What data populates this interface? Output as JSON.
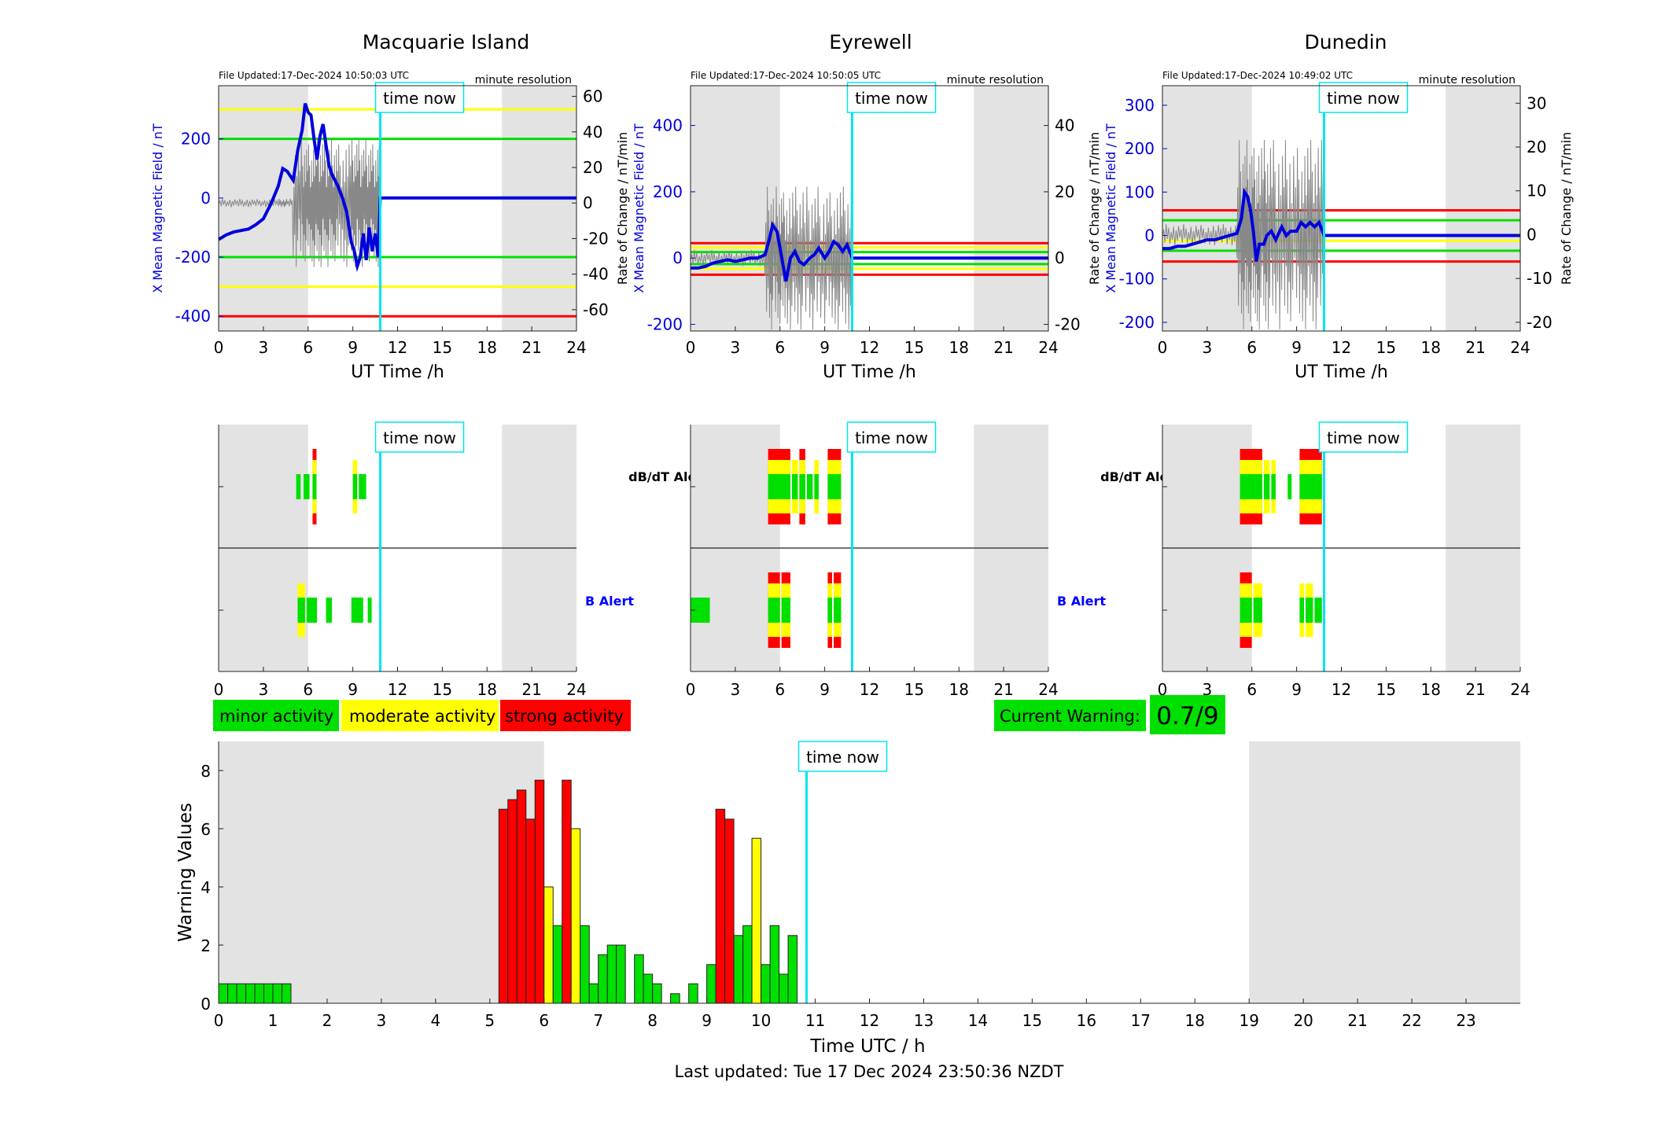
{
  "colors": {
    "minor": "#00e000",
    "moderate": "#ffff00",
    "strong": "#ff0000",
    "field": "#0000dd",
    "now": "#00e5ee",
    "shade": "#e3e3e3",
    "b_alert_label": "#0000ff"
  },
  "stations": [
    {
      "name": "Macquarie Island",
      "file_updated": "File Updated:17-Dec-2024 10:50:03 UTC",
      "resolution": "minute resolution",
      "left_ylabel": "X Mean Magnetic Field / nT",
      "right_ylabel": "Rate of Change / nT/min",
      "left_ticks": [
        "200",
        "0",
        "-200",
        "-400"
      ],
      "right_ticks": [
        "60",
        "40",
        "20",
        "0",
        "-20",
        "-40",
        "-60"
      ],
      "xlabel": "UT Time /h",
      "x_ticks": [
        "0",
        "3",
        "6",
        "9",
        "12",
        "15",
        "18",
        "21",
        "24"
      ],
      "time_now": "time now"
    },
    {
      "name": "Eyrewell",
      "file_updated": "File Updated:17-Dec-2024 10:50:05 UTC",
      "resolution": "minute resolution",
      "left_ylabel": "X Mean Magnetic Field / nT",
      "right_ylabel": "Rate of Change / nT/min",
      "left_ticks": [
        "400",
        "200",
        "0",
        "-200"
      ],
      "right_ticks": [
        "40",
        "20",
        "0",
        "-20"
      ],
      "xlabel": "UT Time /h",
      "x_ticks": [
        "0",
        "3",
        "6",
        "9",
        "12",
        "15",
        "18",
        "21",
        "24"
      ],
      "time_now": "time now"
    },
    {
      "name": "Dunedin",
      "file_updated": "File Updated:17-Dec-2024 10:49:02 UTC",
      "resolution": "minute resolution",
      "left_ylabel": "X Mean Magnetic Field / nT",
      "right_ylabel": "Rate of Change / nT/min",
      "left_ticks": [
        "300",
        "200",
        "100",
        "0",
        "-100",
        "-200"
      ],
      "right_ticks": [
        "30",
        "20",
        "10",
        "0",
        "-10",
        "-20"
      ],
      "xlabel": "UT Time /h",
      "x_ticks": [
        "0",
        "3",
        "6",
        "9",
        "12",
        "15",
        "18",
        "21",
        "24"
      ],
      "time_now": "time now"
    }
  ],
  "alerts": {
    "dbdt_label": "dB/dT Alert",
    "b_label": "B Alert",
    "time_now": "time now",
    "x_ticks": [
      "0",
      "3",
      "6",
      "9",
      "12",
      "15",
      "18",
      "21",
      "24"
    ]
  },
  "legend": {
    "minor": "minor activity",
    "moderate": "moderate activity",
    "strong": "strong activity"
  },
  "current_warning": {
    "label": "Current Warning:",
    "value": "0.7/9"
  },
  "footer": "Last updated: Tue 17 Dec 2024 23:50:36 NZDT",
  "chart_data": [
    {
      "id": "macquarie-field",
      "type": "line",
      "title": "Macquarie Island",
      "xlabel": "UT Time /h",
      "ylabel": "X Mean Magnetic Field / nT",
      "y2label": "Rate of Change / nT/min",
      "xlim": [
        0,
        24
      ],
      "ylim": [
        -450,
        380
      ],
      "y2lim": [
        -72,
        66
      ],
      "shaded_hours": [
        [
          0,
          6
        ],
        [
          19,
          24
        ]
      ],
      "time_now_h": 10.84,
      "threshold_lines": [
        {
          "level": "moderate",
          "y": 300
        },
        {
          "level": "minor",
          "y": 200
        },
        {
          "level": "minor",
          "y": -200
        },
        {
          "level": "moderate",
          "y": -300
        },
        {
          "level": "strong",
          "y": -400
        }
      ],
      "series": [
        {
          "x": [
            0,
            0.5,
            1,
            1.5,
            2,
            2.5,
            3,
            3.5,
            4,
            4.3,
            4.6,
            5,
            5.3,
            5.6,
            5.8,
            6,
            6.2,
            6.4,
            6.6,
            6.8,
            7,
            7.2,
            7.4,
            7.6,
            7.8,
            8,
            8.3,
            8.6,
            8.9,
            9.1,
            9.3,
            9.5,
            9.7,
            9.9,
            10.1,
            10.3,
            10.5,
            10.7,
            10.84,
            24
          ],
          "y": [
            -140,
            -125,
            -115,
            -110,
            -105,
            -90,
            -70,
            -20,
            40,
            100,
            90,
            60,
            160,
            230,
            320,
            290,
            280,
            200,
            130,
            210,
            250,
            180,
            110,
            80,
            60,
            40,
            0,
            -50,
            -150,
            -180,
            -230,
            -200,
            -120,
            -210,
            -100,
            -180,
            -120,
            -200,
            0,
            0
          ]
        }
      ]
    },
    {
      "id": "eyrewell-field",
      "type": "line",
      "title": "Eyrewell",
      "xlabel": "UT Time /h",
      "ylabel": "X Mean Magnetic Field / nT",
      "y2label": "Rate of Change / nT/min",
      "xlim": [
        0,
        24
      ],
      "ylim": [
        -220,
        520
      ],
      "y2lim": [
        -22,
        52
      ],
      "shaded_hours": [
        [
          0,
          6
        ],
        [
          19,
          24
        ]
      ],
      "time_now_h": 10.84,
      "threshold_lines": [
        {
          "level": "strong",
          "y": 45
        },
        {
          "level": "moderate",
          "y": 32
        },
        {
          "level": "minor",
          "y": 18
        },
        {
          "level": "minor",
          "y": -18
        },
        {
          "level": "moderate",
          "y": -32
        },
        {
          "level": "strong",
          "y": -50
        }
      ],
      "series": [
        {
          "x": [
            0,
            0.5,
            1,
            1.5,
            2,
            2.5,
            3,
            3.5,
            4,
            4.5,
            5,
            5.3,
            5.5,
            5.8,
            6,
            6.2,
            6.4,
            6.7,
            7,
            7.3,
            7.6,
            8,
            8.3,
            8.6,
            9,
            9.3,
            9.6,
            9.9,
            10.2,
            10.5,
            10.84,
            24
          ],
          "y": [
            -30,
            -30,
            -25,
            -15,
            -10,
            -5,
            -10,
            -5,
            0,
            0,
            10,
            60,
            100,
            80,
            30,
            -20,
            -70,
            0,
            20,
            -10,
            -20,
            0,
            10,
            30,
            0,
            20,
            50,
            40,
            20,
            40,
            0,
            0
          ]
        }
      ]
    },
    {
      "id": "dunedin-field",
      "type": "line",
      "title": "Dunedin",
      "xlabel": "UT Time /h",
      "ylabel": "X Mean Magnetic Field / nT",
      "y2label": "Rate of Change / nT/min",
      "xlim": [
        0,
        24
      ],
      "ylim": [
        -220,
        345
      ],
      "y2lim": [
        -22,
        34
      ],
      "shaded_hours": [
        [
          0,
          6
        ],
        [
          19,
          24
        ]
      ],
      "time_now_h": 10.84,
      "threshold_lines": [
        {
          "level": "strong",
          "y": 58
        },
        {
          "level": "minor",
          "y": 35
        },
        {
          "level": "moderate",
          "y": -12
        },
        {
          "level": "minor",
          "y": -35
        },
        {
          "level": "strong",
          "y": -60
        }
      ],
      "series": [
        {
          "x": [
            0,
            0.5,
            1,
            1.5,
            2,
            2.5,
            3,
            3.5,
            4,
            4.5,
            5,
            5.3,
            5.5,
            5.7,
            5.9,
            6.1,
            6.3,
            6.5,
            6.8,
            7,
            7.3,
            7.6,
            8,
            8.3,
            8.6,
            9,
            9.3,
            9.6,
            9.9,
            10.2,
            10.5,
            10.84,
            24
          ],
          "y": [
            -30,
            -30,
            -25,
            -25,
            -20,
            -15,
            -10,
            -10,
            -5,
            0,
            5,
            40,
            100,
            90,
            60,
            10,
            -60,
            -20,
            -20,
            0,
            10,
            -10,
            20,
            0,
            10,
            10,
            30,
            20,
            30,
            20,
            30,
            0,
            0
          ]
        }
      ]
    },
    {
      "id": "alert-timelines",
      "type": "heatmap",
      "xlim": [
        0,
        24
      ],
      "shaded_hours": [
        [
          0,
          6
        ],
        [
          19,
          24
        ]
      ],
      "time_now_h": 10.84,
      "rows": [
        "dB/dT Alert",
        "B Alert"
      ],
      "series": [
        {
          "name": "Macquarie Island",
          "dbdt": [
            {
              "x0": 5.2,
              "x1": 5.6,
              "level": 1
            },
            {
              "x0": 5.7,
              "x1": 6.2,
              "level": 1
            },
            {
              "x0": 6.3,
              "x1": 6.6,
              "level": 3
            },
            {
              "x0": 9.0,
              "x1": 9.4,
              "level": 2
            },
            {
              "x0": 9.4,
              "x1": 10.0,
              "level": 1
            }
          ],
          "b": [
            {
              "x0": 5.3,
              "x1": 5.9,
              "level": 2
            },
            {
              "x0": 5.9,
              "x1": 6.7,
              "level": 1
            },
            {
              "x0": 7.2,
              "x1": 7.7,
              "level": 1
            },
            {
              "x0": 8.9,
              "x1": 9.8,
              "level": 1
            },
            {
              "x0": 10.0,
              "x1": 10.3,
              "level": 1
            }
          ]
        },
        {
          "name": "Eyrewell",
          "dbdt": [
            {
              "x0": 5.2,
              "x1": 6.8,
              "level": 3
            },
            {
              "x0": 6.8,
              "x1": 7.3,
              "level": 2
            },
            {
              "x0": 7.3,
              "x1": 7.8,
              "level": 3
            },
            {
              "x0": 7.8,
              "x1": 8.3,
              "level": 1
            },
            {
              "x0": 8.3,
              "x1": 8.7,
              "level": 2
            },
            {
              "x0": 9.2,
              "x1": 10.2,
              "level": 3
            }
          ],
          "b": [
            {
              "x0": 0,
              "x1": 1.4,
              "level": 1
            },
            {
              "x0": 5.2,
              "x1": 6.1,
              "level": 3
            },
            {
              "x0": 6.1,
              "x1": 6.8,
              "level": 3
            },
            {
              "x0": 9.2,
              "x1": 9.6,
              "level": 3
            },
            {
              "x0": 9.6,
              "x1": 10.2,
              "level": 3
            }
          ]
        },
        {
          "name": "Dunedin",
          "dbdt": [
            {
              "x0": 5.2,
              "x1": 6.8,
              "level": 3
            },
            {
              "x0": 6.8,
              "x1": 7.3,
              "level": 2
            },
            {
              "x0": 7.3,
              "x1": 7.7,
              "level": 2
            },
            {
              "x0": 8.4,
              "x1": 8.7,
              "level": 1
            },
            {
              "x0": 9.2,
              "x1": 10.8,
              "level": 3
            }
          ],
          "b": [
            {
              "x0": 5.2,
              "x1": 6.1,
              "level": 3
            },
            {
              "x0": 6.1,
              "x1": 6.8,
              "level": 2
            },
            {
              "x0": 9.2,
              "x1": 9.6,
              "level": 2
            },
            {
              "x0": 9.6,
              "x1": 10.2,
              "level": 2
            },
            {
              "x0": 10.2,
              "x1": 10.8,
              "level": 1
            }
          ]
        }
      ]
    },
    {
      "id": "warning-values",
      "type": "bar",
      "xlabel": "Time UTC / h",
      "ylabel": "Warning Values",
      "xlim": [
        0,
        24
      ],
      "ylim": [
        0,
        9
      ],
      "y_ticks": [
        "0",
        "2",
        "4",
        "6",
        "8"
      ],
      "x_ticks": [
        "0",
        "1",
        "2",
        "3",
        "4",
        "5",
        "6",
        "7",
        "8",
        "9",
        "10",
        "11",
        "12",
        "13",
        "14",
        "15",
        "16",
        "17",
        "18",
        "19",
        "20",
        "21",
        "22",
        "23"
      ],
      "shaded_hours": [
        [
          0,
          6
        ],
        [
          19,
          24
        ]
      ],
      "time_now_h": 10.84,
      "bar_width_h": 0.1667,
      "bars": [
        {
          "x": 0.0,
          "y": 0.67,
          "level": "minor"
        },
        {
          "x": 0.167,
          "y": 0.67,
          "level": "minor"
        },
        {
          "x": 0.333,
          "y": 0.67,
          "level": "minor"
        },
        {
          "x": 0.5,
          "y": 0.67,
          "level": "minor"
        },
        {
          "x": 0.667,
          "y": 0.67,
          "level": "minor"
        },
        {
          "x": 0.833,
          "y": 0.67,
          "level": "minor"
        },
        {
          "x": 1.0,
          "y": 0.67,
          "level": "minor"
        },
        {
          "x": 1.167,
          "y": 0.67,
          "level": "minor"
        },
        {
          "x": 5.167,
          "y": 6.67,
          "level": "strong"
        },
        {
          "x": 5.333,
          "y": 7.0,
          "level": "strong"
        },
        {
          "x": 5.5,
          "y": 7.33,
          "level": "strong"
        },
        {
          "x": 5.667,
          "y": 6.33,
          "level": "strong"
        },
        {
          "x": 5.833,
          "y": 7.67,
          "level": "strong"
        },
        {
          "x": 6.0,
          "y": 4.0,
          "level": "moderate"
        },
        {
          "x": 6.167,
          "y": 2.67,
          "level": "minor"
        },
        {
          "x": 6.333,
          "y": 7.67,
          "level": "strong"
        },
        {
          "x": 6.5,
          "y": 6.0,
          "level": "moderate"
        },
        {
          "x": 6.667,
          "y": 2.67,
          "level": "minor"
        },
        {
          "x": 6.833,
          "y": 0.67,
          "level": "minor"
        },
        {
          "x": 7.0,
          "y": 1.67,
          "level": "minor"
        },
        {
          "x": 7.167,
          "y": 2.0,
          "level": "minor"
        },
        {
          "x": 7.333,
          "y": 2.0,
          "level": "minor"
        },
        {
          "x": 7.667,
          "y": 1.67,
          "level": "minor"
        },
        {
          "x": 7.833,
          "y": 1.0,
          "level": "minor"
        },
        {
          "x": 8.0,
          "y": 0.67,
          "level": "minor"
        },
        {
          "x": 8.333,
          "y": 0.33,
          "level": "minor"
        },
        {
          "x": 8.667,
          "y": 0.67,
          "level": "minor"
        },
        {
          "x": 9.0,
          "y": 1.33,
          "level": "minor"
        },
        {
          "x": 9.167,
          "y": 6.67,
          "level": "strong"
        },
        {
          "x": 9.333,
          "y": 6.33,
          "level": "strong"
        },
        {
          "x": 9.5,
          "y": 2.33,
          "level": "minor"
        },
        {
          "x": 9.667,
          "y": 2.67,
          "level": "minor"
        },
        {
          "x": 9.833,
          "y": 5.67,
          "level": "moderate"
        },
        {
          "x": 10.0,
          "y": 1.33,
          "level": "minor"
        },
        {
          "x": 10.167,
          "y": 2.67,
          "level": "minor"
        },
        {
          "x": 10.333,
          "y": 1.0,
          "level": "minor"
        },
        {
          "x": 10.5,
          "y": 2.33,
          "level": "minor"
        }
      ]
    }
  ]
}
